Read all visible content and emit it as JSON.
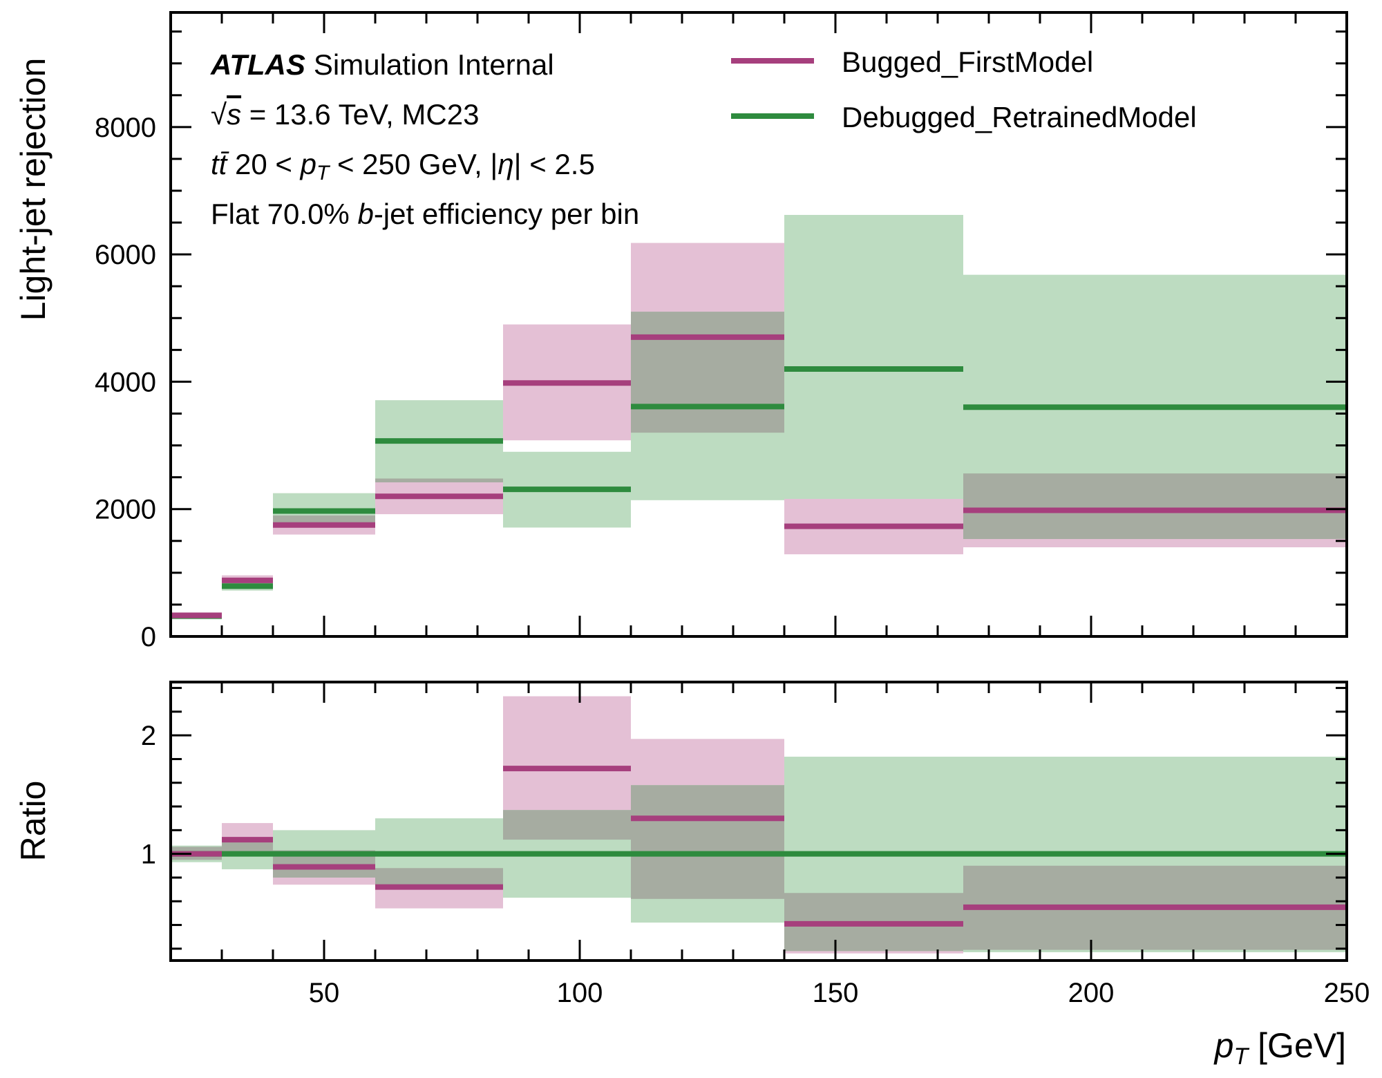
{
  "chart_data": {
    "type": "step",
    "xlabel": "p_T [GeV]",
    "x_bins": [
      20,
      30,
      40,
      60,
      85,
      110,
      140,
      175,
      250
    ],
    "xlim": [
      20,
      250
    ],
    "x_ticks": [
      50,
      100,
      150,
      200,
      250
    ],
    "annotations": {
      "atlas": "ATLAS",
      "atlas_suffix": "Simulation Internal",
      "line2": "√s = 13.6 TeV, MC23",
      "line3": "tt̄ 20 < p_T < 250 GeV, |η| < 2.5",
      "line4": "Flat 70.0% b-jet efficiency per bin"
    },
    "colors": {
      "bugged": "#a63f7d",
      "bugged_band": "#e4c0d5",
      "debugged": "#2e8b3e",
      "debugged_band": "#bddcc1",
      "overlap": "#a6aca1"
    },
    "legend": {
      "placement": "top-right",
      "entries": [
        "Bugged_FirstModel",
        "Debugged_RetrainedModel"
      ]
    },
    "main": {
      "ylabel": "Light-jet rejection",
      "ylim": [
        0,
        9800
      ],
      "y_ticks": [
        0,
        2000,
        4000,
        6000,
        8000
      ],
      "series": [
        {
          "name": "Bugged_FirstModel",
          "values": [
            330,
            880,
            1750,
            2200,
            3980,
            4700,
            1730,
            1980
          ],
          "lower": [
            280,
            800,
            1600,
            1920,
            3080,
            3200,
            1290,
            1400
          ],
          "upper": [
            380,
            960,
            1900,
            2480,
            4900,
            6180,
            2160,
            2560
          ]
        },
        {
          "name": "Debugged_RetrainedModel",
          "values": [
            320,
            790,
            1970,
            3070,
            2310,
            3610,
            4200,
            3600
          ],
          "lower": [
            270,
            720,
            1760,
            2420,
            1710,
            2140,
            2160,
            1530
          ],
          "upper": [
            370,
            860,
            2250,
            3710,
            2900,
            5100,
            6620,
            5680
          ]
        }
      ]
    },
    "ratio": {
      "ylabel": "Ratio",
      "ylim": [
        0.1,
        2.45
      ],
      "y_ticks": [
        1,
        2
      ],
      "series": [
        {
          "name": "Bugged_FirstModel",
          "values": [
            1.0,
            1.12,
            0.89,
            0.72,
            1.72,
            1.3,
            0.41,
            0.55
          ],
          "lower": [
            0.95,
            0.98,
            0.74,
            0.54,
            1.12,
            0.62,
            0.16,
            0.19
          ],
          "upper": [
            1.06,
            1.26,
            1.03,
            0.88,
            2.33,
            1.97,
            0.67,
            0.9
          ]
        },
        {
          "name": "Debugged_RetrainedModel",
          "values": [
            1.0,
            1.0,
            1.0,
            1.0,
            1.0,
            1.0,
            1.0,
            1.0
          ],
          "lower": [
            0.93,
            0.87,
            0.8,
            0.73,
            0.63,
            0.42,
            0.18,
            0.17
          ],
          "upper": [
            1.07,
            1.13,
            1.2,
            1.3,
            1.37,
            1.58,
            1.82,
            1.82
          ]
        }
      ]
    }
  }
}
